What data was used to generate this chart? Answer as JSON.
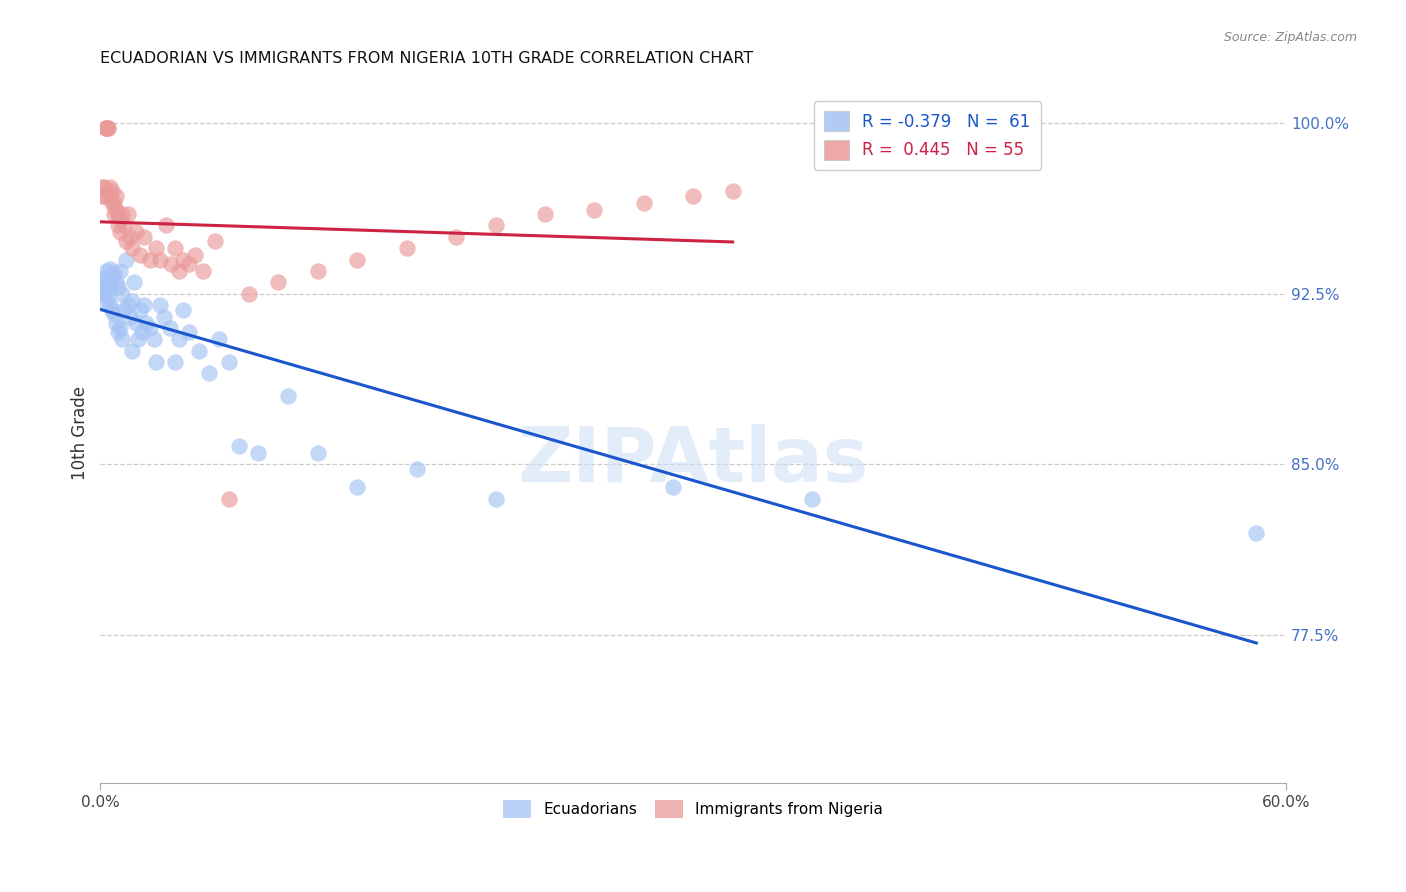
{
  "title": "ECUADORIAN VS IMMIGRANTS FROM NIGERIA 10TH GRADE CORRELATION CHART",
  "source": "Source: ZipAtlas.com",
  "ylabel_label": "10th Grade",
  "ylabel_ticks": [
    0.775,
    0.85,
    0.925,
    1.0
  ],
  "ylabel_tick_labels": [
    "77.5%",
    "85.0%",
    "92.5%",
    "100.0%"
  ],
  "xmin": 0.0,
  "xmax": 0.6,
  "ymin": 0.71,
  "ymax": 1.018,
  "blue_color": "#a4c2f4",
  "pink_color": "#ea9999",
  "blue_line_color": "#1a56cc",
  "pink_line_color": "#cc2244",
  "watermark": "ZIPAtlas",
  "legend_line1": "R = -0.379   N =  61",
  "legend_line2": "R =  0.445   N = 55",
  "legend_color1": "#1a56cc",
  "legend_color2": "#cc2244",
  "blue_scatter_x": [
    0.001,
    0.001,
    0.002,
    0.002,
    0.003,
    0.003,
    0.004,
    0.004,
    0.004,
    0.005,
    0.005,
    0.005,
    0.006,
    0.006,
    0.007,
    0.007,
    0.008,
    0.008,
    0.009,
    0.009,
    0.01,
    0.01,
    0.011,
    0.011,
    0.012,
    0.013,
    0.014,
    0.015,
    0.016,
    0.016,
    0.017,
    0.018,
    0.019,
    0.02,
    0.021,
    0.022,
    0.023,
    0.025,
    0.027,
    0.028,
    0.03,
    0.032,
    0.035,
    0.038,
    0.04,
    0.042,
    0.045,
    0.05,
    0.055,
    0.06,
    0.065,
    0.07,
    0.08,
    0.095,
    0.11,
    0.13,
    0.16,
    0.2,
    0.29,
    0.36,
    0.585
  ],
  "blue_scatter_y": [
    0.93,
    0.925,
    0.928,
    0.932,
    0.935,
    0.922,
    0.931,
    0.927,
    0.924,
    0.936,
    0.929,
    0.92,
    0.932,
    0.918,
    0.934,
    0.916,
    0.93,
    0.912,
    0.928,
    0.908,
    0.935,
    0.91,
    0.925,
    0.905,
    0.918,
    0.94,
    0.92,
    0.915,
    0.922,
    0.9,
    0.93,
    0.912,
    0.905,
    0.918,
    0.908,
    0.92,
    0.912,
    0.91,
    0.905,
    0.895,
    0.92,
    0.915,
    0.91,
    0.895,
    0.905,
    0.918,
    0.908,
    0.9,
    0.89,
    0.905,
    0.895,
    0.858,
    0.855,
    0.88,
    0.855,
    0.84,
    0.848,
    0.835,
    0.84,
    0.835,
    0.82
  ],
  "pink_scatter_x": [
    0.001,
    0.001,
    0.002,
    0.002,
    0.003,
    0.003,
    0.003,
    0.004,
    0.004,
    0.005,
    0.005,
    0.006,
    0.006,
    0.007,
    0.007,
    0.008,
    0.008,
    0.009,
    0.009,
    0.01,
    0.01,
    0.011,
    0.012,
    0.013,
    0.014,
    0.015,
    0.016,
    0.018,
    0.02,
    0.022,
    0.025,
    0.028,
    0.03,
    0.033,
    0.036,
    0.038,
    0.04,
    0.042,
    0.045,
    0.048,
    0.052,
    0.058,
    0.065,
    0.075,
    0.09,
    0.11,
    0.13,
    0.155,
    0.18,
    0.2,
    0.225,
    0.25,
    0.275,
    0.3,
    0.32
  ],
  "pink_scatter_y": [
    0.972,
    0.968,
    0.968,
    0.972,
    0.998,
    0.998,
    0.998,
    0.998,
    0.998,
    0.972,
    0.968,
    0.97,
    0.965,
    0.965,
    0.96,
    0.968,
    0.962,
    0.96,
    0.955,
    0.958,
    0.952,
    0.96,
    0.955,
    0.948,
    0.96,
    0.95,
    0.945,
    0.952,
    0.942,
    0.95,
    0.94,
    0.945,
    0.94,
    0.955,
    0.938,
    0.945,
    0.935,
    0.94,
    0.938,
    0.942,
    0.935,
    0.948,
    0.835,
    0.925,
    0.93,
    0.935,
    0.94,
    0.945,
    0.95,
    0.955,
    0.96,
    0.962,
    0.965,
    0.968,
    0.97
  ]
}
